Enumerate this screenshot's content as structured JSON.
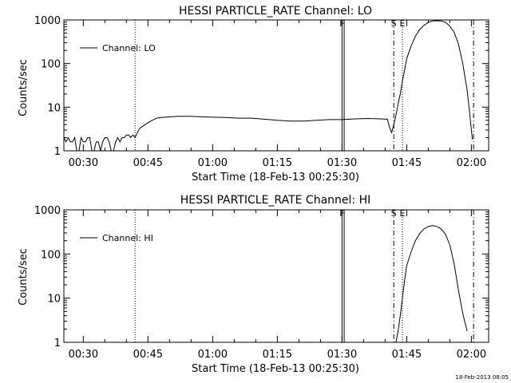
{
  "footer_timestamp": "18-Feb-2013 08:05",
  "chart_data": [
    {
      "type": "line",
      "title": "HESSI PARTICLE_RATE Channel: LO",
      "xlabel": "Start Time (18-Feb-13 00:25:30)",
      "ylabel": "Counts/sec",
      "log_y": true,
      "xlim": [
        "00:25:30",
        "02:04:00"
      ],
      "ylim": [
        1,
        1000
      ],
      "x_ticks": [
        "00:30",
        "00:45",
        "01:00",
        "01:15",
        "01:30",
        "01:45",
        "02:00"
      ],
      "y_ticks": [
        "1",
        "10",
        "100",
        "1000"
      ],
      "legend": {
        "position": "top-left",
        "entries": [
          "Channel: LO"
        ]
      },
      "markers": [
        {
          "time": "00:42",
          "style": "dotted"
        },
        {
          "time": "01:30:00",
          "style": "solid",
          "label": "F"
        },
        {
          "time": "01:30:30",
          "style": "solid"
        },
        {
          "time": "01:42",
          "style": "dash-dot",
          "label": "S"
        },
        {
          "time": "01:44",
          "style": "dotted",
          "label": "E"
        },
        {
          "time": "02:00:30",
          "style": "dash-dot"
        }
      ],
      "series": [
        {
          "name": "Channel: LO",
          "points": [
            [
              "00:25:30",
              2
            ],
            [
              "00:26:00",
              1.6
            ],
            [
              "00:26:30",
              2
            ],
            [
              "00:27:00",
              1.6
            ],
            [
              "00:27:30",
              1.6
            ],
            [
              "00:28:00",
              2
            ],
            [
              "00:28:30",
              1
            ],
            [
              "00:29:00",
              1
            ],
            [
              "00:29:30",
              2
            ],
            [
              "00:30:00",
              1.6
            ],
            [
              "00:30:30",
              1.6
            ],
            [
              "00:31:00",
              2
            ],
            [
              "00:31:30",
              2
            ],
            [
              "00:32:00",
              1
            ],
            [
              "00:32:30",
              1
            ],
            [
              "00:33:00",
              1.6
            ],
            [
              "00:33:30",
              1.6
            ],
            [
              "00:34:00",
              1
            ],
            [
              "00:34:30",
              1.6
            ],
            [
              "00:35:00",
              2
            ],
            [
              "00:35:30",
              2
            ],
            [
              "00:36:00",
              1.6
            ],
            [
              "00:36:30",
              1
            ],
            [
              "00:37:00",
              1
            ],
            [
              "00:37:30",
              1.6
            ],
            [
              "00:38:00",
              2
            ],
            [
              "00:38:30",
              1.6
            ],
            [
              "00:39:00",
              2
            ],
            [
              "00:39:30",
              2
            ],
            [
              "00:40:00",
              2.3
            ],
            [
              "00:40:30",
              2.3
            ],
            [
              "00:41:00",
              2
            ],
            [
              "00:41:30",
              2.3
            ],
            [
              "00:42:00",
              2
            ],
            [
              "00:43:00",
              3.2
            ],
            [
              "00:44:00",
              3.8
            ],
            [
              "00:45:00",
              4.4
            ],
            [
              "00:46:00",
              5
            ],
            [
              "00:47:00",
              5.6
            ],
            [
              "00:48:00",
              5.8
            ],
            [
              "00:50:00",
              6
            ],
            [
              "00:52:00",
              6.2
            ],
            [
              "00:55:00",
              6.2
            ],
            [
              "00:58:00",
              6
            ],
            [
              "01:00:00",
              5.9
            ],
            [
              "01:03:00",
              5.8
            ],
            [
              "01:06:00",
              5.6
            ],
            [
              "01:09:00",
              5.6
            ],
            [
              "01:12:00",
              5.3
            ],
            [
              "01:15:00",
              5
            ],
            [
              "01:18:00",
              4.8
            ],
            [
              "01:21:00",
              4.8
            ],
            [
              "01:24:00",
              5
            ],
            [
              "01:27:00",
              5.2
            ],
            [
              "01:30:00",
              5.2
            ],
            [
              "01:33:00",
              5.4
            ],
            [
              "01:36:00",
              5.5
            ],
            [
              "01:39:00",
              5.4
            ],
            [
              "01:40:30",
              5.3
            ],
            [
              "01:41:00",
              3.5
            ],
            [
              "01:41:30",
              2.6
            ],
            [
              "01:42:00",
              4
            ],
            [
              "01:42:30",
              6.5
            ],
            [
              "01:43:00",
              12
            ],
            [
              "01:43:30",
              20
            ],
            [
              "01:44:00",
              40
            ],
            [
              "01:44:30",
              70
            ],
            [
              "01:45:00",
              130
            ],
            [
              "01:46:00",
              250
            ],
            [
              "01:47:00",
              420
            ],
            [
              "01:48:00",
              600
            ],
            [
              "01:49:00",
              750
            ],
            [
              "01:50:00",
              880
            ],
            [
              "01:51:00",
              950
            ],
            [
              "01:52:00",
              960
            ],
            [
              "01:53:00",
              950
            ],
            [
              "01:54:00",
              880
            ],
            [
              "01:55:00",
              720
            ],
            [
              "01:56:00",
              520
            ],
            [
              "01:57:00",
              280
            ],
            [
              "01:58:00",
              100
            ],
            [
              "01:59:00",
              25
            ],
            [
              "01:59:30",
              9
            ],
            [
              "02:00:00",
              3
            ],
            [
              "02:00:15",
              1.8
            ]
          ]
        }
      ]
    },
    {
      "type": "line",
      "title": "HESSI PARTICLE_RATE Channel: HI",
      "xlabel": "Start Time (18-Feb-13 00:25:30)",
      "ylabel": "Counts/sec",
      "log_y": true,
      "xlim": [
        "00:25:30",
        "02:04:00"
      ],
      "ylim": [
        1,
        1000
      ],
      "x_ticks": [
        "00:30",
        "00:45",
        "01:00",
        "01:15",
        "01:30",
        "01:45",
        "02:00"
      ],
      "y_ticks": [
        "1",
        "10",
        "100",
        "1000"
      ],
      "legend": {
        "position": "top-left",
        "entries": [
          "Channel: HI"
        ]
      },
      "markers": [
        {
          "time": "00:42",
          "style": "dotted"
        },
        {
          "time": "01:30:00",
          "style": "solid",
          "label": "F"
        },
        {
          "time": "01:30:30",
          "style": "solid"
        },
        {
          "time": "01:42",
          "style": "dash-dot",
          "label": "S"
        },
        {
          "time": "01:44",
          "style": "dotted",
          "label": "E"
        },
        {
          "time": "02:00:30",
          "style": "dash-dot"
        }
      ],
      "series": [
        {
          "name": "Channel: HI",
          "points": [
            [
              "01:42:30",
              1
            ],
            [
              "01:43:00",
              1.8
            ],
            [
              "01:43:30",
              4
            ],
            [
              "01:44:00",
              10
            ],
            [
              "01:44:30",
              25
            ],
            [
              "01:45:00",
              55
            ],
            [
              "01:46:00",
              110
            ],
            [
              "01:47:00",
              200
            ],
            [
              "01:48:00",
              290
            ],
            [
              "01:49:00",
              370
            ],
            [
              "01:50:00",
              420
            ],
            [
              "01:51:00",
              440
            ],
            [
              "01:52:00",
              420
            ],
            [
              "01:53:00",
              370
            ],
            [
              "01:54:00",
              280
            ],
            [
              "01:55:00",
              160
            ],
            [
              "01:56:00",
              60
            ],
            [
              "01:57:00",
              15
            ],
            [
              "01:58:00",
              4.5
            ],
            [
              "01:59:00",
              1.8
            ]
          ]
        }
      ]
    }
  ]
}
